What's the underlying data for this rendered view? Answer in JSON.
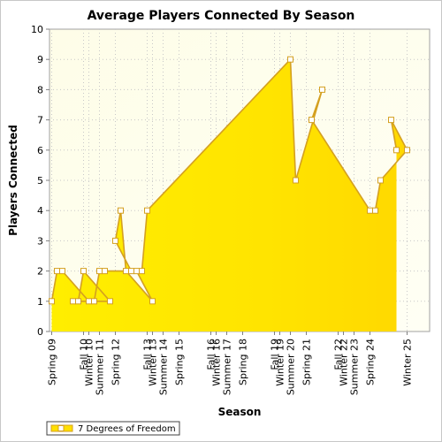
{
  "chart_data": {
    "type": "area",
    "title": "Average Players Connected By Season",
    "xlabel": "Season",
    "ylabel": "Players Connected",
    "ylim": [
      0,
      10
    ],
    "yticks": [
      0,
      1,
      2,
      3,
      4,
      5,
      6,
      7,
      8,
      9,
      10
    ],
    "grid": true,
    "legend_position": "bottom-left",
    "x_tick_labels": [
      "Spring 09",
      "Winter 10",
      "Fall 10",
      "Summer 11",
      "Spring 12",
      "Winter 13",
      "Fall 13",
      "Summer 14",
      "Spring 15",
      "Winter 16",
      "Fall 16",
      "Summer 17",
      "Spring 18",
      "Winter 19",
      "Fall 19",
      "Summer 20",
      "Spring 21",
      "Winter 22",
      "Fall 22",
      "Summer 23",
      "Spring 24",
      "Winter 25"
    ],
    "series": [
      {
        "name": "7 Degrees of Freedom",
        "color": "#ffe000",
        "line_color": "#d4a020",
        "points": [
          {
            "x": "Spring 09",
            "y": 1
          },
          {
            "x": "Summer 09",
            "y": 2
          },
          {
            "x": "Fall 09",
            "y": 2
          },
          {
            "x": "Winter 10",
            "y": 1
          },
          {
            "x": "Spring 10",
            "y": 1
          },
          {
            "x": "Summer 10",
            "y": 1
          },
          {
            "x": "Fall 10",
            "y": 2
          },
          {
            "x": "Winter 11",
            "y": 1
          },
          {
            "x": "Spring 11",
            "y": 1
          },
          {
            "x": "Summer 11",
            "y": 2
          },
          {
            "x": "Fall 11",
            "y": 2
          },
          {
            "x": "Winter 12",
            "y": 2
          },
          {
            "x": "Spring 12",
            "y": 3
          },
          {
            "x": "Summer 12",
            "y": 4
          },
          {
            "x": "Fall 12",
            "y": 2
          },
          {
            "x": "Winter 13",
            "y": 1
          },
          {
            "x": "Spring 13",
            "y": 2
          },
          {
            "x": "Summer 13",
            "y": 2
          },
          {
            "x": "Fall 13",
            "y": 4
          },
          {
            "x": "Summer 20",
            "y": 9
          },
          {
            "x": "Fall 20",
            "y": 5
          },
          {
            "x": "Winter 21",
            "y": 8
          },
          {
            "x": "Summer 21",
            "y": 7
          },
          {
            "x": "Spring 24",
            "y": 4
          },
          {
            "x": "Summer 24",
            "y": 4
          },
          {
            "x": "Fall 24",
            "y": 5
          },
          {
            "x": "Winter 25",
            "y": 6
          },
          {
            "x": "Spring 25",
            "y": 7
          },
          {
            "x": "Summer 25",
            "y": 6
          }
        ]
      }
    ]
  }
}
